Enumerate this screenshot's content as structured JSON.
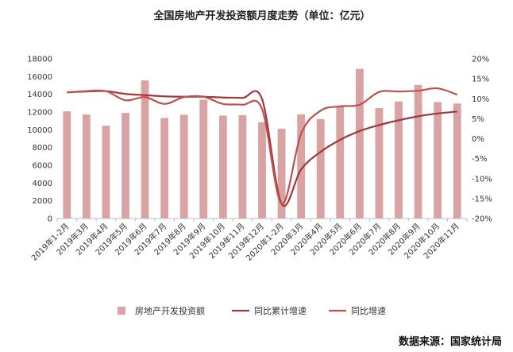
{
  "chart_data": {
    "type": "bar",
    "title": "全国房地产开发投资额月度走势（单位：亿元）",
    "source": "数据来源：国家统计局",
    "categories": [
      "2019年1-2月",
      "2019年3月",
      "2019年4月",
      "2019年5月",
      "2019年6月",
      "2019年7月",
      "2019年8月",
      "2019年9月",
      "2019年10月",
      "2019年11月",
      "2019年12月",
      "2020年1-2月",
      "2020年3月",
      "2020年4月",
      "2020年5月",
      "2020年6月",
      "2020年7月",
      "2020年8月",
      "2020年9月",
      "2020年10月",
      "2020年11月"
    ],
    "left_axis": {
      "min": 0,
      "max": 18000,
      "ticks": [
        "0",
        "2000",
        "4000",
        "6000",
        "8000",
        "10000",
        "12000",
        "14000",
        "16000",
        "18000"
      ]
    },
    "right_axis": {
      "min": -20,
      "max": 20,
      "ticks": [
        "-20%",
        "-15%",
        "-10%",
        "-5%",
        "0%",
        "5%",
        "10%",
        "15%",
        "20%"
      ]
    },
    "series": [
      {
        "name": "房地产开发投资额",
        "type": "bar",
        "axis": "left",
        "color": "#d9a3a3",
        "values": [
          12090,
          11720,
          10460,
          11900,
          15560,
          11330,
          11700,
          13390,
          11600,
          11650,
          10850,
          10115,
          11740,
          11200,
          12640,
          16870,
          12450,
          13190,
          15060,
          13130,
          12960
        ]
      },
      {
        "name": "同比累计增速",
        "type": "line",
        "axis": "right",
        "color": "#9e3a3a",
        "values": [
          11.6,
          11.8,
          11.9,
          11.2,
          10.9,
          10.6,
          10.5,
          10.5,
          10.3,
          10.2,
          9.9,
          -16.3,
          -7.7,
          -3.3,
          -0.3,
          1.9,
          3.4,
          4.6,
          5.6,
          6.3,
          6.8
        ]
      },
      {
        "name": "同比增速",
        "type": "line",
        "axis": "right",
        "color": "#c0504d",
        "values": [
          11.6,
          11.9,
          11.9,
          9.6,
          10.4,
          8.7,
          10.4,
          10.5,
          8.7,
          8.5,
          7.4,
          -16.3,
          1.2,
          7.0,
          8.1,
          8.5,
          11.7,
          11.8,
          12.0,
          12.6,
          11.0
        ]
      }
    ]
  }
}
